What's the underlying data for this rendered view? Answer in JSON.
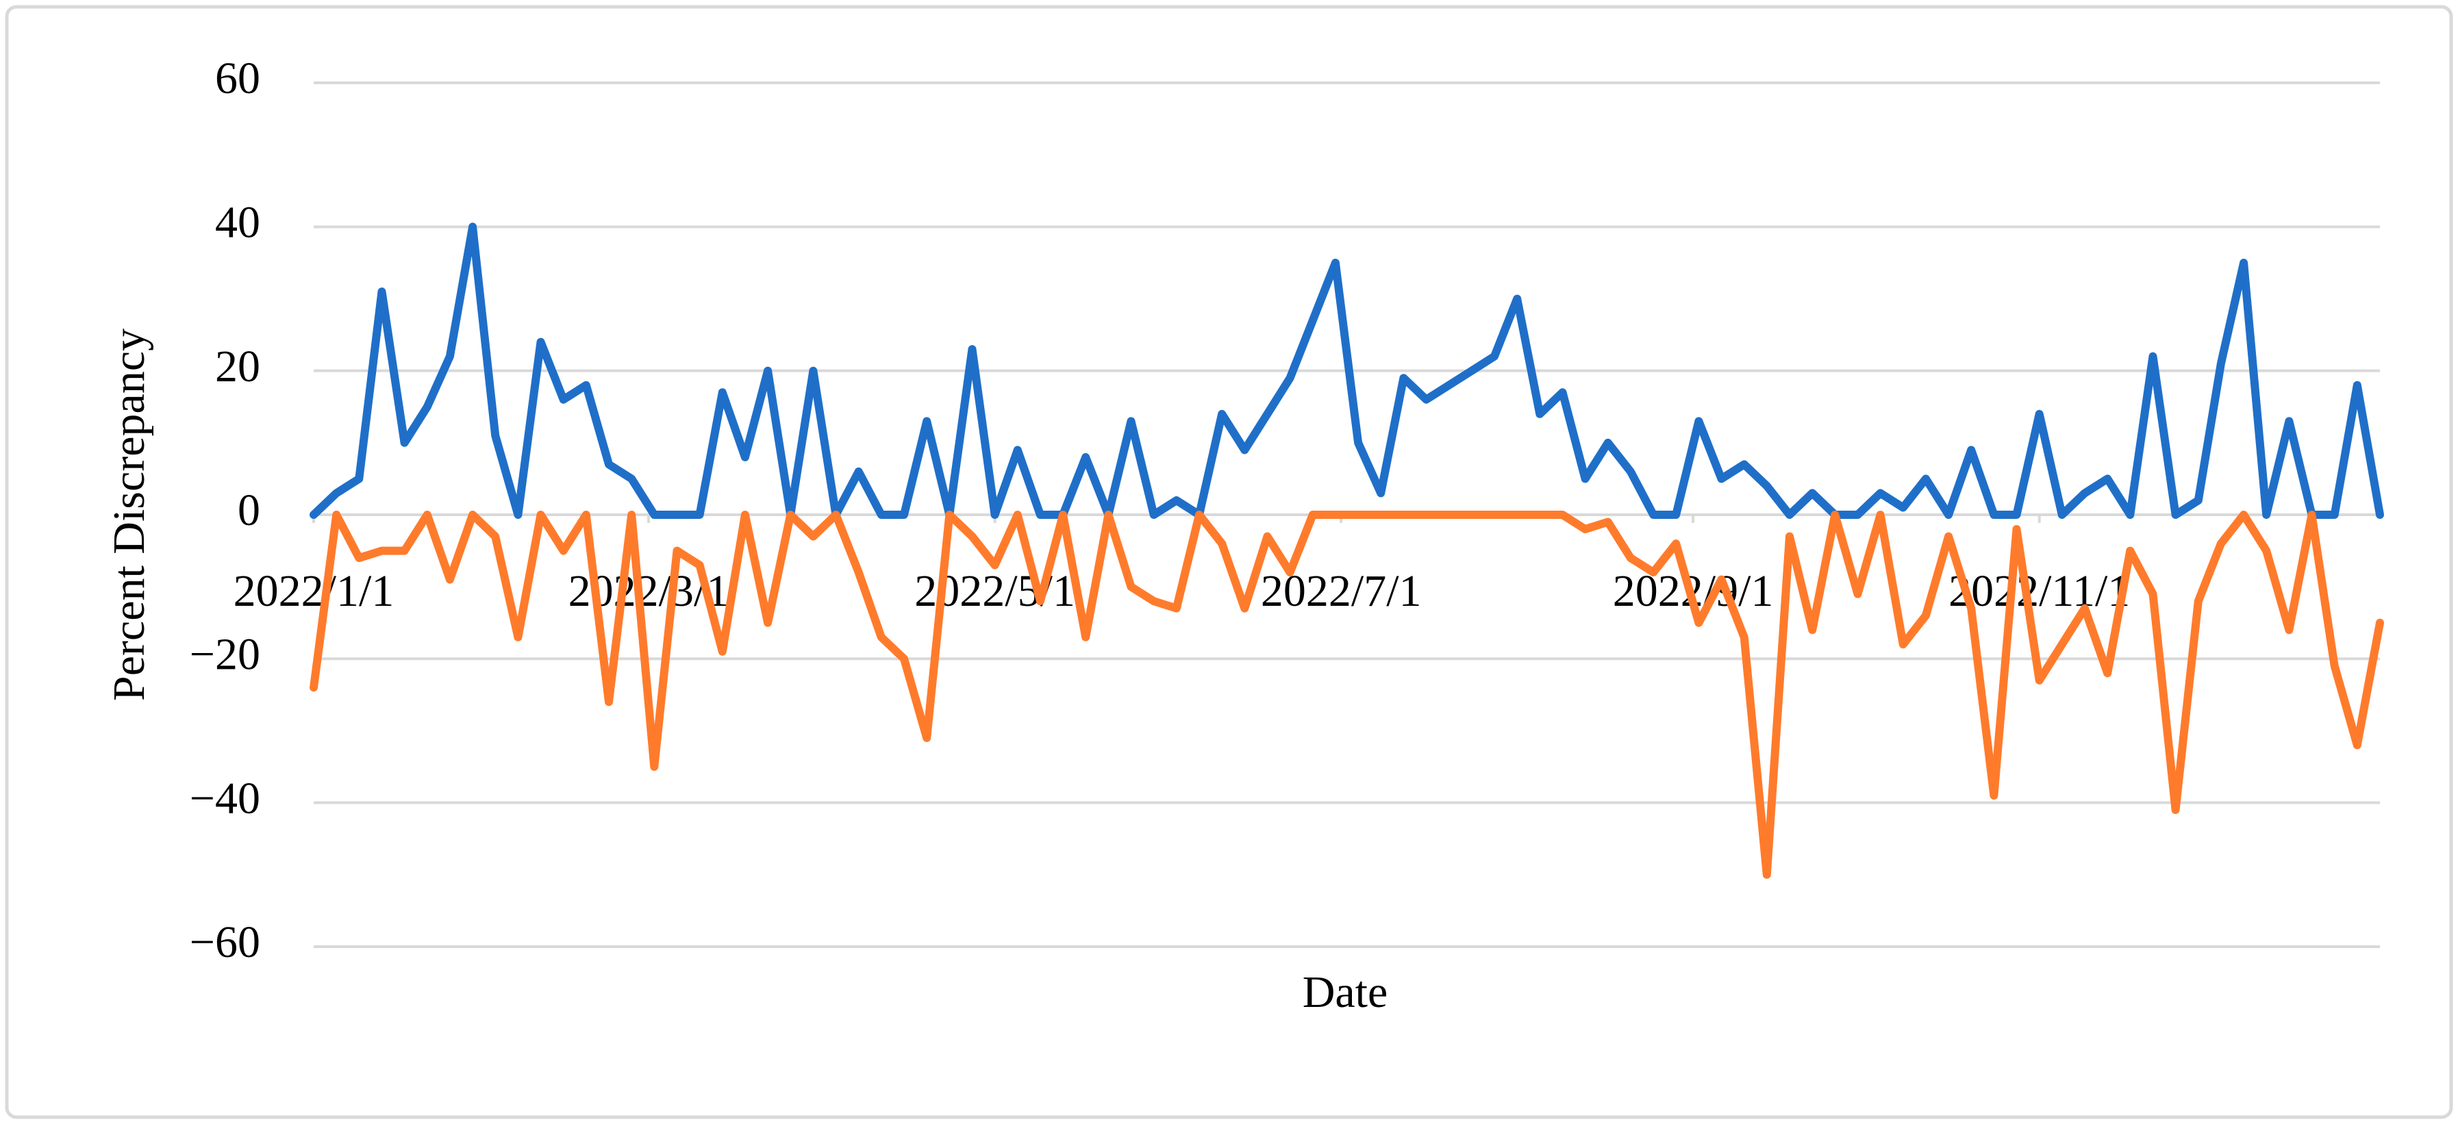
{
  "chart_data": {
    "type": "line",
    "xlabel": "Date",
    "ylabel": "Percent Discrepancy",
    "x": [
      "2022/1/1",
      "2022/1/5",
      "2022/1/9",
      "2022/1/13",
      "2022/1/17",
      "2022/1/21",
      "2022/1/25",
      "2022/1/29",
      "2022/2/2",
      "2022/2/6",
      "2022/2/10",
      "2022/2/14",
      "2022/2/18",
      "2022/2/22",
      "2022/2/26",
      "2022/3/2",
      "2022/3/6",
      "2022/3/10",
      "2022/3/14",
      "2022/3/18",
      "2022/3/22",
      "2022/3/26",
      "2022/3/30",
      "2022/4/3",
      "2022/4/7",
      "2022/4/11",
      "2022/4/15",
      "2022/4/19",
      "2022/4/23",
      "2022/4/27",
      "2022/5/1",
      "2022/5/5",
      "2022/5/9",
      "2022/5/13",
      "2022/5/17",
      "2022/5/21",
      "2022/5/25",
      "2022/5/29",
      "2022/6/2",
      "2022/6/6",
      "2022/6/10",
      "2022/6/14",
      "2022/6/18",
      "2022/6/22",
      "2022/6/26",
      "2022/6/30",
      "2022/7/4",
      "2022/7/8",
      "2022/7/12",
      "2022/7/16",
      "2022/7/20",
      "2022/7/24",
      "2022/7/28",
      "2022/8/1",
      "2022/8/5",
      "2022/8/9",
      "2022/8/13",
      "2022/8/17",
      "2022/8/21",
      "2022/8/25",
      "2022/8/29",
      "2022/9/2",
      "2022/9/6",
      "2022/9/10",
      "2022/9/14",
      "2022/9/18",
      "2022/9/22",
      "2022/9/26",
      "2022/9/30",
      "2022/10/4",
      "2022/10/8",
      "2022/10/12",
      "2022/10/16",
      "2022/10/20",
      "2022/10/24",
      "2022/10/28",
      "2022/11/1",
      "2022/11/5",
      "2022/11/9",
      "2022/11/13",
      "2022/11/17",
      "2022/11/21",
      "2022/11/25",
      "2022/11/29",
      "2022/12/3",
      "2022/12/7",
      "2022/12/11",
      "2022/12/15",
      "2022/12/19",
      "2022/12/23",
      "2022/12/27",
      "2022/12/31"
    ],
    "series": [
      {
        "color": "#1f6fc9",
        "values": [
          0,
          3,
          5,
          31,
          10,
          15,
          22,
          40,
          11,
          0,
          24,
          16,
          18,
          7,
          5,
          0,
          0,
          0,
          17,
          8,
          20,
          0,
          20,
          0,
          6,
          0,
          0,
          13,
          0,
          23,
          0,
          9,
          0,
          0,
          8,
          0,
          13,
          0,
          2,
          0,
          14,
          9,
          14,
          19,
          27,
          35,
          10,
          3,
          19,
          16,
          18,
          20,
          22,
          30,
          14,
          17,
          5,
          10,
          6,
          0,
          0,
          13,
          5,
          7,
          4,
          0,
          3,
          0,
          0,
          3,
          1,
          5,
          0,
          9,
          0,
          0,
          14,
          0,
          3,
          5,
          0,
          22,
          0,
          2,
          21,
          35,
          0,
          13,
          0,
          0,
          18,
          0
        ]
      },
      {
        "color": "#ff7b2c",
        "values": [
          -24,
          0,
          -6,
          -5,
          -5,
          0,
          -9,
          0,
          -3,
          -17,
          0,
          -5,
          0,
          -26,
          0,
          -35,
          -5,
          -7,
          -19,
          0,
          -15,
          0,
          -3,
          0,
          -8,
          -17,
          -20,
          -31,
          0,
          -3,
          -7,
          0,
          -12,
          0,
          -17,
          0,
          -10,
          -12,
          -13,
          0,
          -4,
          -13,
          -3,
          -8,
          0,
          0,
          0,
          0,
          0,
          0,
          0,
          0,
          0,
          0,
          0,
          0,
          -2,
          -1,
          -6,
          -8,
          -4,
          -15,
          -9,
          -17,
          -50,
          -3,
          -16,
          0,
          -11,
          0,
          -18,
          -14,
          -3,
          -13,
          -39,
          -2,
          -23,
          -18,
          -13,
          -22,
          -5,
          -11,
          -41,
          -12,
          -4,
          0,
          -5,
          -16,
          0,
          -21,
          -32,
          -15
        ]
      }
    ],
    "xlim": [
      "2022/1/1",
      "2022/12/31"
    ],
    "xticks": [
      "2022/1/1",
      "2022/3/1",
      "2022/5/1",
      "2022/7/1",
      "2022/9/1",
      "2022/11/1"
    ],
    "ylim": [
      -60,
      60
    ],
    "yticks": [
      {
        "value": -60,
        "label": "−60"
      },
      {
        "value": -40,
        "label": "−40"
      },
      {
        "value": -20,
        "label": "−20"
      },
      0,
      20,
      40,
      60
    ],
    "grid": true
  }
}
